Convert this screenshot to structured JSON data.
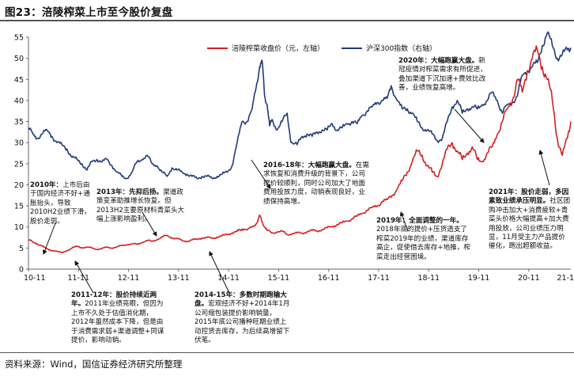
{
  "figure_title": "图23：涪陵榨菜上市至今股价复盘",
  "source_note": "资料来源：Wind，国信证券经济研究所整理",
  "colors": {
    "stock": "#d21f1f",
    "index": "#1f3a7a",
    "arrow": "#111111",
    "axis": "#666666"
  },
  "chart_data": {
    "type": "line",
    "title": "",
    "x_ticks": [
      "10-11",
      "11-11",
      "12-11",
      "13-11",
      "14-11",
      "15-11",
      "16-11",
      "17-11",
      "18-11",
      "19-11",
      "20-11",
      "21-11"
    ],
    "x_range": [
      2010.83,
      2021.67
    ],
    "y_left": {
      "range": [
        0,
        55
      ],
      "ticks": [
        0,
        5,
        10,
        15,
        20,
        25,
        30,
        35,
        40,
        45,
        50,
        55
      ]
    },
    "y_right": {
      "range": [
        0,
        5500
      ],
      "ticks": []
    },
    "grid": false,
    "legend_position": "top",
    "series": [
      {
        "name": "涪陵榨菜收盘价（元，左轴）",
        "axis": "left",
        "x": [
          2010.83,
          2010.92,
          2011.0,
          2011.08,
          2011.17,
          2011.25,
          2011.35,
          2011.5,
          2011.6,
          2011.7,
          2011.8,
          2011.9,
          2012.0,
          2012.1,
          2012.2,
          2012.3,
          2012.4,
          2012.5,
          2012.6,
          2012.7,
          2012.8,
          2012.9,
          2013.0,
          2013.1,
          2013.2,
          2013.3,
          2013.4,
          2013.5,
          2013.6,
          2013.7,
          2013.8,
          2013.9,
          2014.0,
          2014.1,
          2014.2,
          2014.3,
          2014.4,
          2014.5,
          2014.6,
          2014.7,
          2014.8,
          2014.9,
          2015.0,
          2015.05,
          2015.1,
          2015.2,
          2015.3,
          2015.4,
          2015.45,
          2015.5,
          2015.55,
          2015.6,
          2015.7,
          2015.8,
          2015.9,
          2016.0,
          2016.1,
          2016.2,
          2016.3,
          2016.4,
          2016.5,
          2016.6,
          2016.7,
          2016.8,
          2016.9,
          2017.0,
          2017.1,
          2017.2,
          2017.3,
          2017.4,
          2017.5,
          2017.6,
          2017.7,
          2017.8,
          2017.9,
          2018.0,
          2018.1,
          2018.2,
          2018.3,
          2018.4,
          2018.5,
          2018.6,
          2018.7,
          2018.8,
          2018.9,
          2019.0,
          2019.1,
          2019.2,
          2019.3,
          2019.4,
          2019.5,
          2019.6,
          2019.7,
          2019.8,
          2019.9,
          2020.0,
          2020.1,
          2020.2,
          2020.3,
          2020.4,
          2020.5,
          2020.6,
          2020.7,
          2020.8,
          2020.9,
          2021.0,
          2021.1,
          2021.2,
          2021.3,
          2021.4,
          2021.5,
          2021.6,
          2021.67
        ],
        "y": [
          7.0,
          6.4,
          6.0,
          5.6,
          5.0,
          4.6,
          4.3,
          3.9,
          4.4,
          5.0,
          5.4,
          5.1,
          5.2,
          5.0,
          4.7,
          4.9,
          5.2,
          5.0,
          5.3,
          5.6,
          5.8,
          6.0,
          5.9,
          6.3,
          6.8,
          6.6,
          7.0,
          7.6,
          8.0,
          7.4,
          7.2,
          6.8,
          6.6,
          6.9,
          7.1,
          7.4,
          7.5,
          7.3,
          7.6,
          7.9,
          8.2,
          8.6,
          9.0,
          9.3,
          9.5,
          9.3,
          10.0,
          11.0,
          12.8,
          11.2,
          10.0,
          9.2,
          8.6,
          8.8,
          9.0,
          8.2,
          8.4,
          8.6,
          8.5,
          8.9,
          9.2,
          9.0,
          9.4,
          9.8,
          10.1,
          10.6,
          11.0,
          11.4,
          12.0,
          12.6,
          13.2,
          14.0,
          14.6,
          15.0,
          16.0,
          16.5,
          17.5,
          19.0,
          21.0,
          23.0,
          25.5,
          28.0,
          27.0,
          24.5,
          23.0,
          22.0,
          25.0,
          28.5,
          30.0,
          28.0,
          26.0,
          27.5,
          29.0,
          26.0,
          25.5,
          27.5,
          29.0,
          32.0,
          35.0,
          38.0,
          40.0,
          45.0,
          42.0,
          47.0,
          50.0,
          52.0,
          48.0,
          45.0,
          40.0,
          31.0,
          27.0,
          31.0,
          35.0
        ]
      },
      {
        "name": "沪深300指数（右轴）",
        "axis": "right",
        "x": [
          2010.83,
          2010.92,
          2011.0,
          2011.1,
          2011.2,
          2011.3,
          2011.4,
          2011.5,
          2011.6,
          2011.7,
          2011.8,
          2011.9,
          2012.0,
          2012.1,
          2012.2,
          2012.3,
          2012.4,
          2012.5,
          2012.6,
          2012.7,
          2012.8,
          2012.9,
          2013.0,
          2013.1,
          2013.2,
          2013.3,
          2013.4,
          2013.5,
          2013.6,
          2013.7,
          2013.8,
          2013.9,
          2014.0,
          2014.1,
          2014.2,
          2014.3,
          2014.4,
          2014.5,
          2014.6,
          2014.7,
          2014.8,
          2014.9,
          2015.0,
          2015.1,
          2015.2,
          2015.3,
          2015.38,
          2015.45,
          2015.5,
          2015.55,
          2015.6,
          2015.65,
          2015.7,
          2015.8,
          2015.9,
          2016.0,
          2016.08,
          2016.2,
          2016.3,
          2016.4,
          2016.5,
          2016.6,
          2016.7,
          2016.8,
          2016.9,
          2017.0,
          2017.1,
          2017.2,
          2017.3,
          2017.4,
          2017.5,
          2017.6,
          2017.7,
          2017.8,
          2017.9,
          2018.0,
          2018.08,
          2018.2,
          2018.3,
          2018.4,
          2018.5,
          2018.6,
          2018.7,
          2018.8,
          2018.9,
          2019.0,
          2019.1,
          2019.2,
          2019.3,
          2019.4,
          2019.5,
          2019.6,
          2019.7,
          2019.8,
          2019.9,
          2020.0,
          2020.1,
          2020.2,
          2020.3,
          2020.4,
          2020.5,
          2020.6,
          2020.7,
          2020.8,
          2020.9,
          2021.0,
          2021.1,
          2021.2,
          2021.3,
          2021.4,
          2021.5,
          2021.6,
          2021.67
        ],
        "y": [
          3350,
          3200,
          3100,
          3200,
          3300,
          3150,
          3000,
          2950,
          2850,
          2650,
          2600,
          2500,
          2350,
          2550,
          2600,
          2550,
          2600,
          2450,
          2300,
          2200,
          2150,
          2300,
          2550,
          2600,
          2700,
          2500,
          2450,
          2300,
          2200,
          2400,
          2350,
          2300,
          2250,
          2200,
          2150,
          2200,
          2200,
          2150,
          2200,
          2250,
          2300,
          2450,
          3000,
          3500,
          3500,
          3800,
          4300,
          4800,
          4950,
          4100,
          3900,
          3400,
          3550,
          3300,
          3500,
          3700,
          3000,
          2950,
          3150,
          3200,
          3150,
          3250,
          3300,
          3300,
          3450,
          3300,
          3350,
          3450,
          3500,
          3450,
          3650,
          3750,
          3850,
          3950,
          4000,
          4050,
          4350,
          4000,
          3800,
          3800,
          3700,
          3500,
          3350,
          3300,
          3200,
          3050,
          3100,
          3500,
          3850,
          4000,
          3700,
          3800,
          3850,
          3800,
          3900,
          4000,
          4200,
          4000,
          3700,
          3900,
          3950,
          4100,
          4600,
          4700,
          4800,
          4900,
          5300,
          5600,
          5300,
          5000,
          5100,
          5200,
          5250
        ]
      }
    ]
  },
  "annotations": [
    {
      "id": "a2010",
      "bold": "2010年：",
      "text": "上市后由于国内经济不好+通胀抬头，导致2010H2业绩下滑，股价走弱。"
    },
    {
      "id": "a2011",
      "bold": "2011-12年：股价持续近两年。",
      "text": "2011年业绩亮眼，但因为上市不久处于估值消化期，2012年虽然成本下降，但是由于消费需求弱+渠道调整+同谋提价，影响动销。"
    },
    {
      "id": "a2013",
      "bold": "2013年：先抑后扬。",
      "text": "渠道政策变革助推增长恢复。但2013H2主要原材料青菜头大幅上涨影响盈利。"
    },
    {
      "id": "a2014",
      "bold": "2014-15年：多数时期跑输大盘。",
      "text": "宏观经济不好+2014年1月公司缩包装提价影响销量，2015年底公司播种旺期业绩上动控货去库存，为后续高增留下伏笔。"
    },
    {
      "id": "a2016",
      "bold": "2016-18年：大幅跑赢大盘。",
      "text": "在需求恢复和消费升级的背景下，公司提价较顺利，同时公司加大了地面费用投放力度，动销表现良好，业绩保持高增。"
    },
    {
      "id": "a2019",
      "bold": "2019年：全面调整的一年。",
      "text": "2018年底的提价+压货透支了榨菜2019年的业绩，渠道库存高企，促使借去库存+地推，榨菜走出经营困境。"
    },
    {
      "id": "a2020",
      "bold": "2020年：大幅跑赢大盘。",
      "text": "新冠疫情对榨菜需求有所促进，叠加渠道下沉加速+费效比改善，业绩恢复高增。"
    },
    {
      "id": "a2021",
      "bold": "2021年：股价走弱，多因素致业绩承压明显。",
      "text": "社区团购冲击加大+消费疲软+青菜头价格大幅提高+加大费用投放，公司业绩压力明显，11月受主力产品提价催化，跑出超额收益。"
    }
  ]
}
